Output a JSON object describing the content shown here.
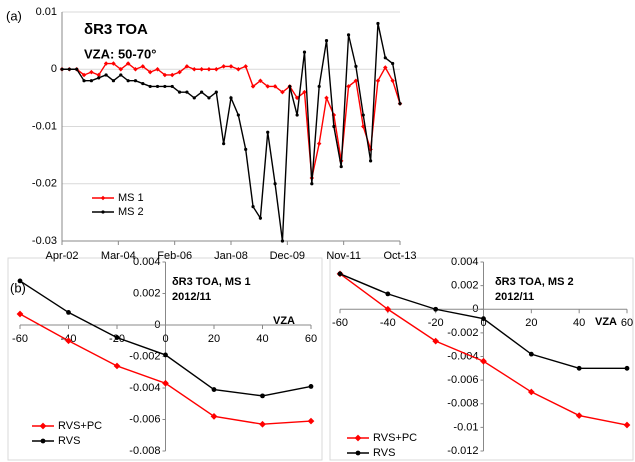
{
  "chart_data": [
    {
      "type": "line",
      "panel_label": "(a)",
      "title": "δR3 TOA",
      "subtitle": "VZA: 50-70°",
      "x": [
        "2002-04",
        "2002-07",
        "2002-10",
        "2003-01",
        "2003-04",
        "2003-07",
        "2003-10",
        "2004-01",
        "2004-04",
        "2004-07",
        "2004-10",
        "2005-01",
        "2005-04",
        "2005-07",
        "2005-10",
        "2006-01",
        "2006-04",
        "2006-07",
        "2006-10",
        "2007-01",
        "2007-04",
        "2007-07",
        "2007-10",
        "2008-01",
        "2008-04",
        "2008-07",
        "2008-10",
        "2009-01",
        "2009-04",
        "2009-07",
        "2009-10",
        "2010-01",
        "2010-04",
        "2010-07",
        "2010-10",
        "2011-01",
        "2011-04",
        "2011-07",
        "2011-10",
        "2012-01",
        "2012-04",
        "2012-07",
        "2012-10",
        "2013-01",
        "2013-04",
        "2013-07",
        "2013-10"
      ],
      "xlim": [
        "2002-04",
        "2013-10"
      ],
      "xticks": [
        {
          "value": "2002-04",
          "label": "Apr-02"
        },
        {
          "value": "2004-03",
          "label": "Mar-04"
        },
        {
          "value": "2006-02",
          "label": "Feb-06"
        },
        {
          "value": "2008-01",
          "label": "Jan-08"
        },
        {
          "value": "2009-12",
          "label": "Dec-09"
        },
        {
          "value": "2011-11",
          "label": "Nov-11"
        },
        {
          "value": "2013-10",
          "label": "Oct-13"
        }
      ],
      "ylim": [
        -0.03,
        0.01
      ],
      "yticks": [
        -0.03,
        -0.02,
        -0.01,
        0,
        0.01
      ],
      "grid": true,
      "series": [
        {
          "name": "MS 1",
          "color": "#ff0000",
          "values": [
            0,
            0,
            0,
            -0.001,
            -0.0005,
            -0.001,
            0.001,
            0.001,
            0,
            0.001,
            0,
            0.0005,
            -0.0005,
            0,
            -0.001,
            -0.001,
            -0.0005,
            0.0005,
            0,
            0,
            0,
            0,
            0.0005,
            0.0005,
            0,
            0.0005,
            -0.003,
            -0.002,
            -0.003,
            -0.003,
            -0.004,
            -0.003,
            -0.005,
            -0.004,
            -0.019,
            -0.013,
            -0.005,
            -0.008,
            -0.016,
            -0.003,
            -0.002,
            -0.01,
            -0.014,
            -0.002,
            0.0003,
            -0.002,
            -0.006
          ]
        },
        {
          "name": "MS 2",
          "color": "#000000",
          "values": [
            0,
            0,
            0,
            -0.002,
            -0.002,
            -0.0015,
            -0.001,
            -0.002,
            -0.001,
            -0.002,
            -0.002,
            -0.0025,
            -0.003,
            -0.003,
            -0.003,
            -0.003,
            -0.004,
            -0.004,
            -0.005,
            -0.004,
            -0.005,
            -0.004,
            -0.013,
            -0.005,
            -0.008,
            -0.014,
            -0.024,
            -0.026,
            -0.011,
            -0.02,
            -0.03,
            -0.003,
            -0.008,
            0.003,
            -0.02,
            -0.003,
            0.005,
            -0.01,
            -0.017,
            0.006,
            0.0005,
            -0.008,
            -0.016,
            0.008,
            0.002,
            0.001,
            -0.006
          ]
        }
      ]
    },
    {
      "type": "line",
      "panel_label": "(b)",
      "title": "δR3 TOA, MS 1",
      "subtitle": "2012/11",
      "x_label": "VZA",
      "x": [
        -60,
        -40,
        -20,
        0,
        20,
        40,
        60
      ],
      "xlim": [
        -60,
        60
      ],
      "xticks": [
        -60,
        -40,
        -20,
        0,
        20,
        40,
        60
      ],
      "ylim": [
        -0.008,
        0.004
      ],
      "yticks": [
        -0.008,
        -0.006,
        -0.004,
        -0.002,
        0,
        0.002,
        0.004
      ],
      "series": [
        {
          "name": "RVS+PC",
          "color": "#ff0000",
          "values": [
            0.0007,
            -0.001,
            -0.0026,
            -0.0037,
            -0.0058,
            -0.0063,
            -0.0061
          ]
        },
        {
          "name": "RVS",
          "color": "#000000",
          "values": [
            0.0028,
            0.0008,
            -0.0008,
            -0.0019,
            -0.0041,
            -0.0045,
            -0.0039
          ]
        }
      ]
    },
    {
      "type": "line",
      "title": "δR3 TOA, MS 2",
      "subtitle": "2012/11",
      "x_label": "VZA",
      "x": [
        -60,
        -40,
        -20,
        0,
        20,
        40,
        60
      ],
      "xlim": [
        -60,
        60
      ],
      "xticks": [
        -60,
        -40,
        -20,
        0,
        20,
        40,
        60
      ],
      "ylim": [
        -0.012,
        0.004
      ],
      "yticks": [
        -0.012,
        -0.01,
        -0.008,
        -0.006,
        -0.004,
        -0.002,
        0,
        0.002,
        0.004
      ],
      "series": [
        {
          "name": "RVS+PC",
          "color": "#ff0000",
          "values": [
            0.003,
            0,
            -0.0027,
            -0.0044,
            -0.007,
            -0.009,
            -0.0098
          ]
        },
        {
          "name": "RVS",
          "color": "#000000",
          "values": [
            0.003,
            0.0013,
            0,
            -0.0008,
            -0.0038,
            -0.005,
            -0.005
          ]
        }
      ]
    }
  ]
}
